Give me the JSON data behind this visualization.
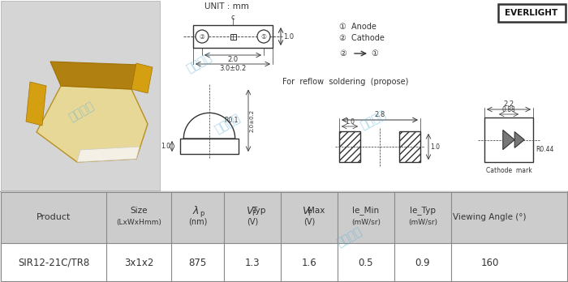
{
  "unit_text": "UNIT : mm",
  "everlight_text": "EVERLIGHT",
  "for_reflow_text": "For  reflow  soldering  (propose)",
  "anode_text": "①  Anode",
  "cathode_text": "②  Cathode",
  "cathode_mark_text": "Cathode  mark",
  "dim_20": "2.0",
  "dim_30": "3.0±0.2",
  "dim_10a": "1.0",
  "dim_r01": "R0.1",
  "dim_20b": "2.0±0.2",
  "dim_28": "2.8",
  "dim_10b": "1.0",
  "dim_10c": "1.0",
  "dim_22": "2.2",
  "dim_088": "0.88",
  "dim_r044": "R0.44",
  "table_col_widths": [
    130,
    80,
    65,
    70,
    70,
    70,
    70,
    95
  ],
  "table_data": [
    [
      "SIR12-21C/TR8",
      "3x1x2",
      "875",
      "1.3",
      "1.6",
      "0.5",
      "0.9",
      "160"
    ]
  ],
  "bg_color": "#ececec",
  "diagram_bg": "#ffffff",
  "watermark_color": "#5ab0d5",
  "watermark_text": "超毅电子"
}
